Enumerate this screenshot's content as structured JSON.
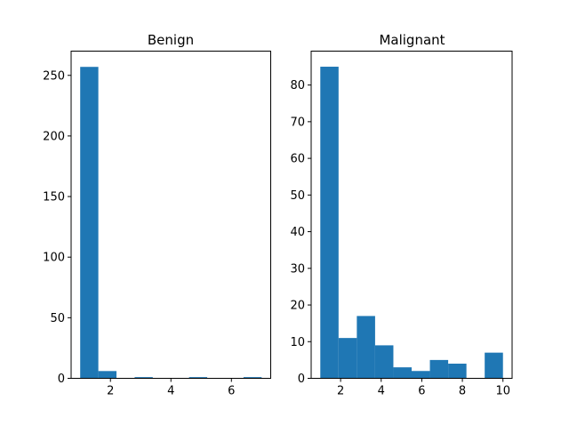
{
  "chart_data": [
    {
      "type": "bar",
      "subtype": "histogram",
      "title": "Benign",
      "xlabel": "",
      "ylabel": "",
      "xlim": [
        0.7,
        7.3
      ],
      "ylim": [
        0,
        270
      ],
      "xticks": [
        2,
        4,
        6
      ],
      "yticks": [
        0,
        50,
        100,
        150,
        200,
        250
      ],
      "bin_edges": [
        1.0,
        1.6,
        2.2,
        2.8,
        3.4,
        4.0,
        4.6,
        5.2,
        5.8,
        6.4,
        7.0
      ],
      "counts": [
        257,
        6,
        0,
        1,
        0,
        0,
        1,
        0,
        0,
        1
      ],
      "color": "#1f77b4",
      "grid": false
    },
    {
      "type": "bar",
      "subtype": "histogram",
      "title": "Malignant",
      "xlabel": "",
      "ylabel": "",
      "xlim": [
        0.55,
        10.45
      ],
      "ylim": [
        0,
        89.25
      ],
      "xticks": [
        2,
        4,
        6,
        8,
        10
      ],
      "yticks": [
        0,
        10,
        20,
        30,
        40,
        50,
        60,
        70,
        80
      ],
      "bin_edges": [
        1.0,
        1.9,
        2.8,
        3.7,
        4.6,
        5.5,
        6.4,
        7.3,
        8.2,
        9.1,
        10.0
      ],
      "counts": [
        85,
        11,
        17,
        9,
        3,
        2,
        5,
        4,
        0,
        7
      ],
      "color": "#1f77b4",
      "grid": false
    }
  ]
}
